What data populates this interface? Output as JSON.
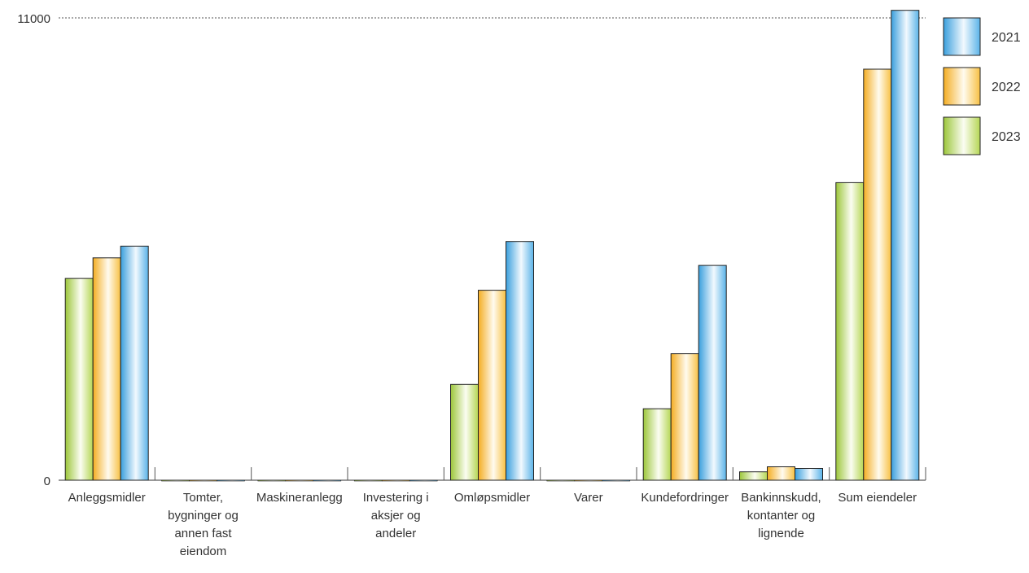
{
  "chart_data": {
    "type": "bar",
    "title": "",
    "xlabel": "",
    "ylabel": "",
    "ylim": [
      0,
      11000
    ],
    "yticks": [
      "0",
      "11000"
    ],
    "grid": "dotted line at top value",
    "legend_position": "top-right",
    "categories": [
      "Anleggsmidler",
      "Tomter, bygninger og annen fast eiendom",
      "Maskineranlegg",
      "Investering i aksjer og andeler",
      "Omløpsmidler",
      "Varer",
      "Kundefordringer",
      "Bankinnskudd, kontanter og lignende",
      "Sum eiendeler"
    ],
    "category_lines": [
      [
        "Anleggsmidler"
      ],
      [
        "Tomter,",
        "bygninger og",
        "annen fast",
        "eiendom"
      ],
      [
        "Maskineranlegg"
      ],
      [
        "Investering i",
        "aksjer og",
        "andeler"
      ],
      [
        "Omløpsmidler"
      ],
      [
        "Varer"
      ],
      [
        "Kundefordringer"
      ],
      [
        "Bankinnskudd,",
        "kontanter og",
        "lignende"
      ],
      [
        "Sum eiendeler"
      ]
    ],
    "series": [
      {
        "name": "2023",
        "color": "#a8cf45",
        "values": [
          4800,
          0,
          0,
          0,
          2280,
          0,
          1700,
          200,
          7080
        ]
      },
      {
        "name": "2022",
        "color": "#f6b732",
        "values": [
          5290,
          0,
          0,
          0,
          4520,
          0,
          3010,
          320,
          9780
        ]
      },
      {
        "name": "2021",
        "color": "#43a7e2",
        "values": [
          5570,
          0,
          0,
          0,
          5680,
          0,
          5110,
          280,
          11180
        ]
      }
    ],
    "legend_order": [
      "2021",
      "2022",
      "2023"
    ]
  }
}
